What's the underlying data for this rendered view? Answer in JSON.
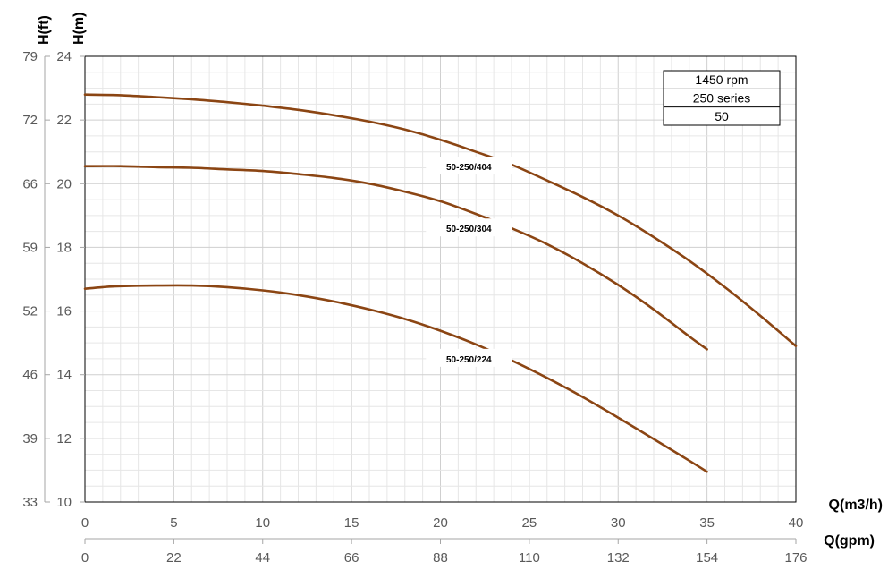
{
  "chart_data": {
    "type": "line",
    "title": "",
    "y_axes": {
      "left_outer": {
        "label": "H(ft)",
        "ticks": [
          33,
          39,
          46,
          52,
          59,
          66,
          72,
          79
        ]
      },
      "left_inner": {
        "label": "H(m)",
        "range": [
          10,
          24
        ],
        "ticks": [
          10,
          12,
          14,
          16,
          18,
          20,
          22,
          24
        ]
      }
    },
    "x_axes": {
      "primary": {
        "label": "Q(m3/h)",
        "range": [
          0,
          40
        ],
        "ticks": [
          0,
          5,
          10,
          15,
          20,
          25,
          30,
          35,
          40
        ]
      },
      "secondary": {
        "label": "Q(gpm)",
        "ticks": [
          0,
          22,
          44,
          66,
          88,
          110,
          132,
          154,
          176
        ]
      }
    },
    "grid": true,
    "legend_box": {
      "position": "top-right",
      "rows": [
        "1450 rpm",
        "250 series",
        "50"
      ]
    },
    "series": [
      {
        "name": "50-250/404",
        "x": [
          0,
          2,
          4,
          6,
          8,
          10,
          12,
          14,
          16,
          18,
          20,
          22,
          24,
          26,
          28,
          30,
          32,
          34,
          36,
          38,
          40
        ],
        "y": [
          22.8,
          22.78,
          22.72,
          22.65,
          22.56,
          22.45,
          22.32,
          22.15,
          21.95,
          21.7,
          21.38,
          21.0,
          20.6,
          20.1,
          19.58,
          19.0,
          18.32,
          17.58,
          16.75,
          15.85,
          14.9
        ]
      },
      {
        "name": "50-250/304",
        "x": [
          0,
          2,
          4,
          6,
          8,
          10,
          12,
          14,
          16,
          18,
          20,
          22,
          24,
          26,
          28,
          30,
          32,
          34,
          35
        ],
        "y": [
          20.55,
          20.55,
          20.52,
          20.5,
          20.45,
          20.4,
          20.3,
          20.18,
          20.0,
          19.75,
          19.45,
          19.05,
          18.6,
          18.1,
          17.5,
          16.82,
          16.05,
          15.2,
          14.8
        ]
      },
      {
        "name": "50-250/224",
        "x": [
          0,
          1,
          2,
          4,
          6,
          8,
          10,
          12,
          14,
          16,
          18,
          20,
          22,
          24,
          26,
          28,
          30,
          32,
          34,
          35
        ],
        "y": [
          16.7,
          16.75,
          16.78,
          16.8,
          16.8,
          16.75,
          16.65,
          16.5,
          16.3,
          16.05,
          15.75,
          15.38,
          14.95,
          14.45,
          13.9,
          13.3,
          12.65,
          11.98,
          11.3,
          10.95
        ]
      }
    ],
    "line_color": "#8B4513"
  }
}
